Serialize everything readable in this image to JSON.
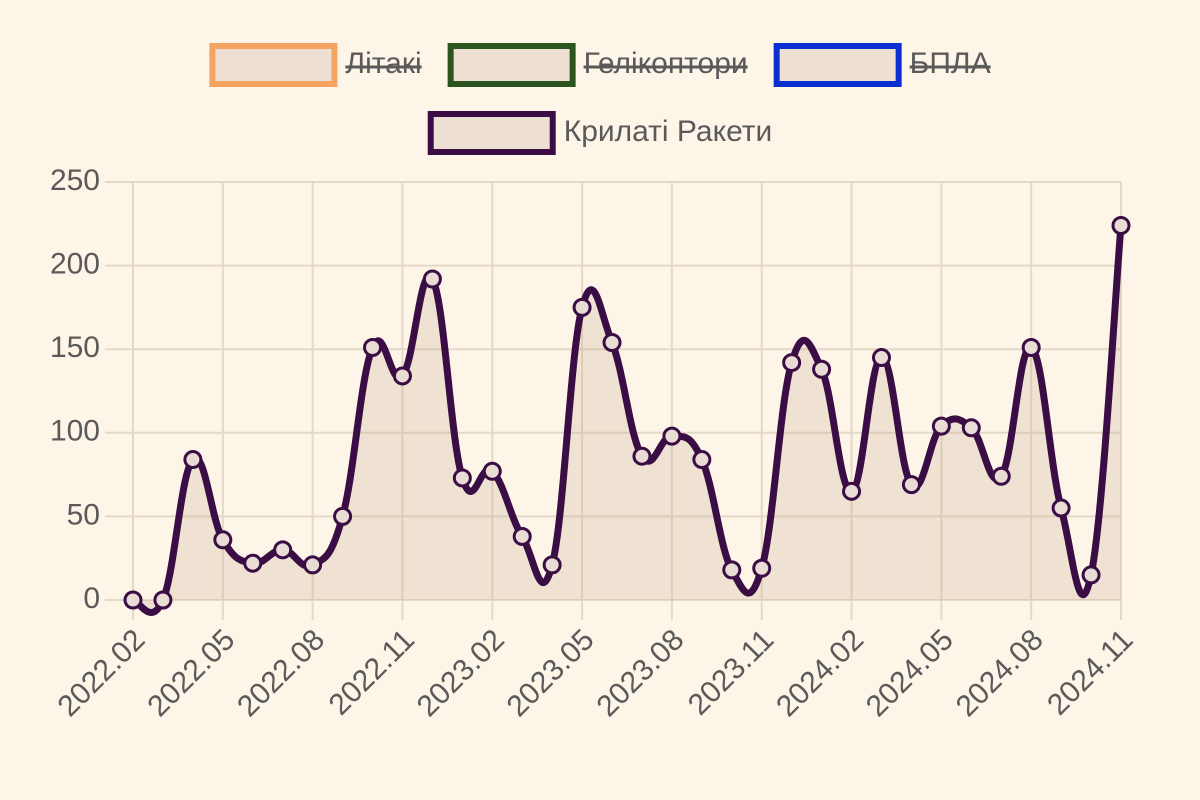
{
  "chart_data": {
    "type": "line",
    "categories": [
      "2022.02",
      null,
      null,
      "2022.05",
      null,
      null,
      "2022.08",
      null,
      null,
      "2022.11",
      null,
      null,
      "2023.02",
      null,
      null,
      "2023.05",
      null,
      null,
      "2023.08",
      null,
      null,
      "2023.11",
      null,
      null,
      "2024.02",
      null,
      null,
      "2024.05",
      null,
      null,
      "2024.08",
      null,
      null,
      "2024.11"
    ],
    "series": [
      {
        "name": "Літакі",
        "color": "#f4a361",
        "hidden": true,
        "values": [
          null,
          null,
          null,
          null,
          null,
          null,
          null,
          null,
          null,
          null,
          null,
          null,
          null,
          null,
          null,
          null,
          null,
          null,
          null,
          null,
          null,
          null,
          null,
          null,
          null,
          null,
          null,
          null,
          null,
          null,
          null,
          null,
          null,
          null
        ]
      },
      {
        "name": "Гелікоптори",
        "color": "#2b5420",
        "hidden": true,
        "values": [
          null,
          null,
          null,
          null,
          null,
          null,
          null,
          null,
          null,
          null,
          null,
          null,
          null,
          null,
          null,
          null,
          null,
          null,
          null,
          null,
          null,
          null,
          null,
          null,
          null,
          null,
          null,
          null,
          null,
          null,
          null,
          null,
          null,
          null
        ]
      },
      {
        "name": "БПЛА",
        "color": "#0a2ed1",
        "hidden": true,
        "values": [
          null,
          null,
          null,
          null,
          null,
          null,
          null,
          null,
          null,
          null,
          null,
          null,
          null,
          null,
          null,
          null,
          null,
          null,
          null,
          null,
          null,
          null,
          null,
          null,
          null,
          null,
          null,
          null,
          null,
          null,
          null,
          null,
          null,
          null
        ]
      },
      {
        "name": "Крилаті Ракети",
        "color": "#3a0e45",
        "hidden": false,
        "values": [
          0,
          0,
          84,
          36,
          22,
          30,
          21,
          50,
          151,
          134,
          192,
          73,
          77,
          38,
          21,
          175,
          154,
          86,
          98,
          84,
          18,
          19,
          142,
          138,
          65,
          145,
          69,
          104,
          103,
          74,
          151,
          55,
          15,
          224
        ]
      }
    ],
    "ylim": [
      0,
      250
    ],
    "yticks": [
      0,
      50,
      100,
      150,
      200,
      250
    ],
    "grid": true,
    "legend": "top"
  }
}
